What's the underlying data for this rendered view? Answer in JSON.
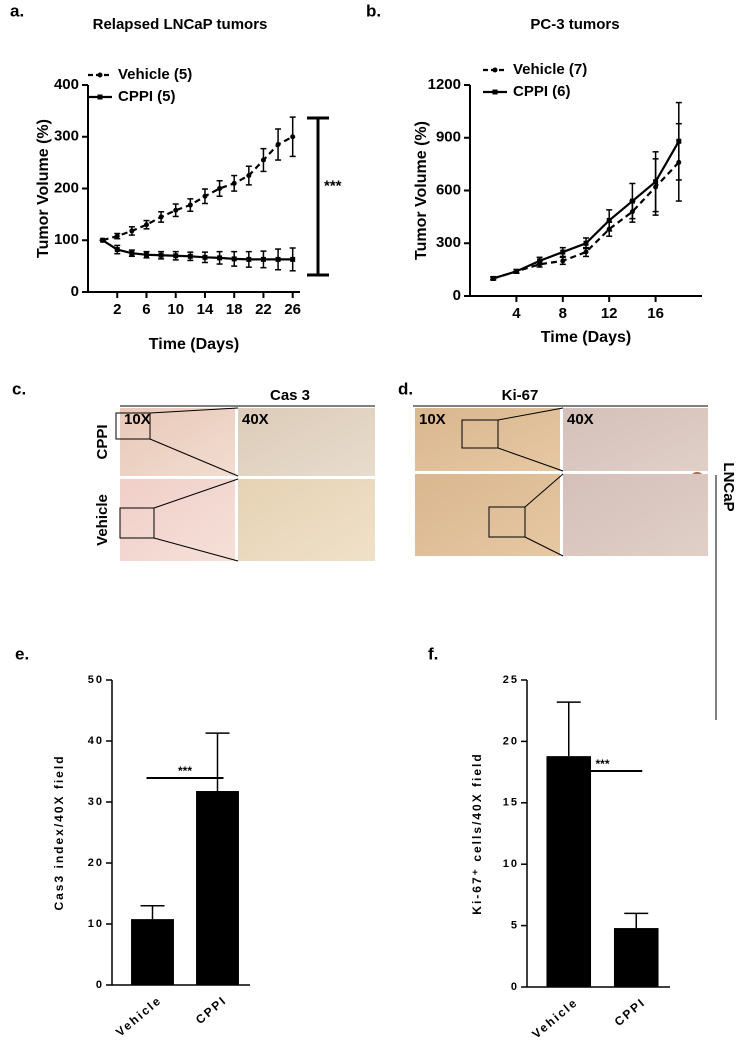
{
  "chart_data": [
    {
      "type": "line",
      "panel_label": "a.",
      "title": "Relapsed LNCaP tumors",
      "xlabel": "Time (Days)",
      "ylabel": "Tumor Volume (%)",
      "x": [
        0,
        2,
        4,
        6,
        8,
        10,
        12,
        14,
        16,
        18,
        20,
        22,
        24,
        26
      ],
      "xlim": [
        -2,
        27
      ],
      "xticks": [
        2,
        6,
        10,
        14,
        18,
        22,
        26
      ],
      "ylim": [
        0,
        400
      ],
      "yticks": [
        0,
        100,
        200,
        300,
        400
      ],
      "series": [
        {
          "name": "Vehicle (5)",
          "color": "#000000",
          "linestyle": "dashed",
          "values": [
            100,
            108,
            118,
            130,
            145,
            158,
            168,
            185,
            200,
            210,
            225,
            255,
            285,
            300
          ],
          "errors": [
            0,
            5,
            8,
            8,
            10,
            12,
            12,
            14,
            15,
            15,
            18,
            22,
            30,
            38
          ]
        },
        {
          "name": "CPPI (5)",
          "color": "#000000",
          "linestyle": "solid",
          "values": [
            100,
            82,
            75,
            72,
            71,
            70,
            69,
            67,
            66,
            64,
            63,
            63,
            63,
            63
          ],
          "errors": [
            0,
            8,
            6,
            6,
            7,
            8,
            8,
            10,
            12,
            14,
            15,
            16,
            20,
            22
          ]
        }
      ],
      "annotation": "***"
    },
    {
      "type": "line",
      "panel_label": "b.",
      "title": "PC-3 tumors",
      "xlabel": "Time (Days)",
      "ylabel": "Tumor Volume (%)",
      "x": [
        2,
        4,
        6,
        8,
        10,
        12,
        14,
        16,
        18
      ],
      "xlim": [
        0,
        20
      ],
      "xticks": [
        4,
        8,
        12,
        16
      ],
      "ylim": [
        0,
        1200
      ],
      "yticks": [
        0,
        300,
        600,
        900,
        1200
      ],
      "series": [
        {
          "name": "Vehicle (7)",
          "color": "#000000",
          "linestyle": "dashed",
          "values": [
            100,
            140,
            180,
            200,
            250,
            380,
            480,
            620,
            760
          ],
          "errors": [
            8,
            10,
            15,
            20,
            25,
            40,
            60,
            160,
            220
          ]
        },
        {
          "name": "CPPI (6)",
          "color": "#000000",
          "linestyle": "solid",
          "values": [
            100,
            140,
            200,
            250,
            300,
            430,
            540,
            650,
            880
          ],
          "errors": [
            8,
            10,
            20,
            25,
            30,
            60,
            100,
            170,
            220
          ]
        }
      ]
    },
    {
      "type": "bar",
      "panel_label": "e.",
      "ylabel": "Cas3 index/40X field",
      "categories": [
        "Vehicle",
        "CPPI"
      ],
      "values": [
        10.8,
        31.8
      ],
      "errors": [
        2.2,
        9.5
      ],
      "color": "#000000",
      "ylim": [
        0,
        50
      ],
      "yticks": [
        0,
        10,
        20,
        30,
        40,
        50
      ],
      "annotation": "***"
    },
    {
      "type": "bar",
      "panel_label": "f.",
      "ylabel": "Ki-67⁺ cells/40X field",
      "categories": [
        "Vehicle",
        "CPPI"
      ],
      "values": [
        18.8,
        4.8
      ],
      "errors": [
        4.4,
        1.2
      ],
      "color": "#000000",
      "ylim": [
        0,
        25
      ],
      "yticks": [
        0,
        5,
        10,
        15,
        20,
        25
      ],
      "annotation": "***"
    }
  ],
  "image_panels": [
    {
      "panel_label": "c.",
      "title": "Cas 3",
      "magnifications": [
        "10X",
        "40X"
      ],
      "rows": [
        "CPPI",
        "Vehicle"
      ]
    },
    {
      "panel_label": "d.",
      "title": "Ki-67",
      "magnifications": [
        "10X",
        "40X"
      ],
      "side_label": "LNCaP"
    }
  ]
}
